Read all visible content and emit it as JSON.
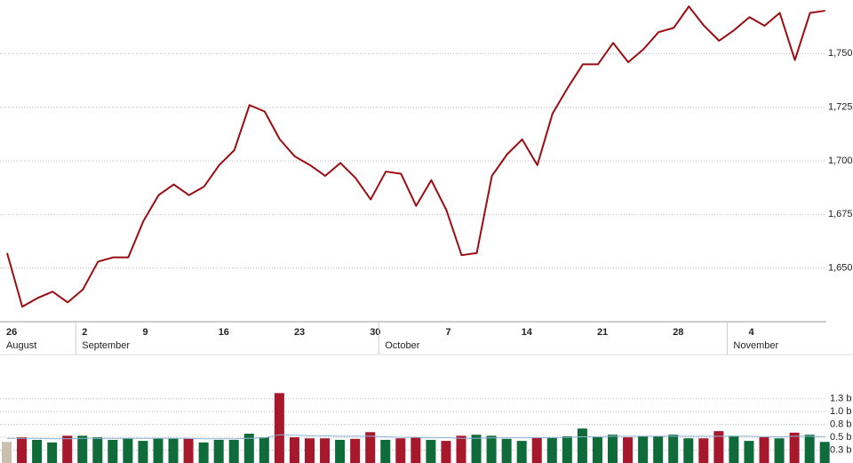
{
  "chart_data": [
    {
      "type": "line",
      "categories": [
        "26",
        null,
        null,
        null,
        null,
        "2",
        null,
        null,
        null,
        "9",
        null,
        null,
        null,
        null,
        "16",
        null,
        null,
        null,
        null,
        "23",
        null,
        null,
        null,
        null,
        "30",
        null,
        null,
        null,
        null,
        "7",
        null,
        null,
        null,
        null,
        "14",
        null,
        null,
        null,
        null,
        "21",
        null,
        null,
        null,
        null,
        "28",
        null,
        null,
        null,
        null,
        "4",
        null,
        null,
        null,
        null,
        null
      ],
      "months": [
        "August",
        null,
        null,
        null,
        null,
        "September",
        null,
        null,
        null,
        null,
        null,
        null,
        null,
        null,
        null,
        null,
        null,
        null,
        null,
        null,
        null,
        null,
        null,
        null,
        null,
        "October",
        null,
        null,
        null,
        null,
        null,
        null,
        null,
        null,
        null,
        null,
        null,
        null,
        null,
        null,
        null,
        null,
        null,
        null,
        null,
        null,
        null,
        null,
        "November",
        null,
        null,
        null,
        null,
        null,
        null
      ],
      "series": [
        {
          "color": "#9b0d12",
          "values": [
            1657,
            1632,
            1636,
            1639,
            1634,
            1640,
            1653,
            1655,
            1655,
            1672,
            1684,
            1689,
            1684,
            1688,
            1698,
            1705,
            1726,
            1723,
            1710,
            1702,
            1698,
            1693,
            1699,
            1692,
            1682,
            1695,
            1694,
            1679,
            1691,
            1677,
            1656,
            1657,
            1693,
            1703,
            1710,
            1698,
            1722,
            1734,
            1745,
            1745,
            1755,
            1746,
            1752,
            1760,
            1762,
            1772,
            1763,
            1756,
            1761,
            1767,
            1763,
            1769,
            1747,
            1769,
            1770
          ]
        }
      ],
      "ylim": [
        1625,
        1775
      ],
      "yticks": [
        {
          "value": 1650,
          "label": "1,650"
        },
        {
          "value": 1675,
          "label": "1,675"
        },
        {
          "value": 1700,
          "label": "1,700"
        },
        {
          "value": 1725,
          "label": "1,725"
        },
        {
          "value": 1750,
          "label": "1,750"
        }
      ],
      "grid": true
    },
    {
      "type": "bar",
      "series": [
        {
          "values": [
            0.41,
            0.5,
            0.45,
            0.4,
            0.53,
            0.53,
            0.5,
            0.45,
            0.48,
            0.43,
            0.48,
            0.48,
            0.47,
            0.4,
            0.45,
            0.45,
            0.57,
            0.5,
            1.36,
            0.5,
            0.48,
            0.48,
            0.45,
            0.47,
            0.6,
            0.45,
            0.48,
            0.5,
            0.45,
            0.43,
            0.53,
            0.55,
            0.53,
            0.47,
            0.43,
            0.5,
            0.5,
            0.52,
            0.67,
            0.5,
            0.55,
            0.5,
            0.52,
            0.52,
            0.55,
            0.48,
            0.48,
            0.62,
            0.53,
            0.43,
            0.5,
            0.48,
            0.59,
            0.55,
            0.41
          ],
          "colors": [
            "#cbbfb0",
            "#a8182c",
            "#0f6b3a",
            "#0f6b3a",
            "#a8182c",
            "#0f6b3a",
            "#0f6b3a",
            "#0f6b3a",
            "#0f6b3a",
            "#0f6b3a",
            "#0f6b3a",
            "#0f6b3a",
            "#a8182c",
            "#0f6b3a",
            "#0f6b3a",
            "#0f6b3a",
            "#0f6b3a",
            "#0f6b3a",
            "#a8182c",
            "#a8182c",
            "#a8182c",
            "#a8182c",
            "#0f6b3a",
            "#a8182c",
            "#a8182c",
            "#0f6b3a",
            "#a8182c",
            "#a8182c",
            "#0f6b3a",
            "#a8182c",
            "#a8182c",
            "#0f6b3a",
            "#0f6b3a",
            "#0f6b3a",
            "#0f6b3a",
            "#a8182c",
            "#0f6b3a",
            "#0f6b3a",
            "#0f6b3a",
            "#0f6b3a",
            "#0f6b3a",
            "#a8182c",
            "#0f6b3a",
            "#0f6b3a",
            "#0f6b3a",
            "#0f6b3a",
            "#a8182c",
            "#a8182c",
            "#0f6b3a",
            "#0f6b3a",
            "#a8182c",
            "#0f6b3a",
            "#a8182c",
            "#0f6b3a",
            "#0f6b3a"
          ]
        },
        {
          "type": "line",
          "color": "#8fb4d6",
          "values": [
            0.48,
            0.48,
            0.48,
            0.47,
            0.47,
            0.48,
            0.48,
            0.48,
            0.48,
            0.48,
            0.48,
            0.48,
            0.48,
            0.47,
            0.47,
            0.47,
            0.48,
            0.49,
            0.55,
            0.54,
            0.53,
            0.53,
            0.52,
            0.52,
            0.52,
            0.51,
            0.5,
            0.5,
            0.49,
            0.49,
            0.48,
            0.48,
            0.49,
            0.49,
            0.49,
            0.49,
            0.49,
            0.5,
            0.51,
            0.51,
            0.52,
            0.52,
            0.52,
            0.52,
            0.52,
            0.52,
            0.52,
            0.52,
            0.52,
            0.52,
            0.51,
            0.51,
            0.52,
            0.52,
            0.51
          ]
        }
      ],
      "ylim": [
        0,
        1.4
      ],
      "yticks": [
        {
          "value": 0.25,
          "label": "0.3 b"
        },
        {
          "value": 0.5,
          "label": "0.5 b"
        },
        {
          "value": 0.75,
          "label": "0.8 b"
        },
        {
          "value": 1.0,
          "label": "1.0 b"
        },
        {
          "value": 1.25,
          "label": "1.3 b"
        }
      ],
      "grid": true
    }
  ]
}
